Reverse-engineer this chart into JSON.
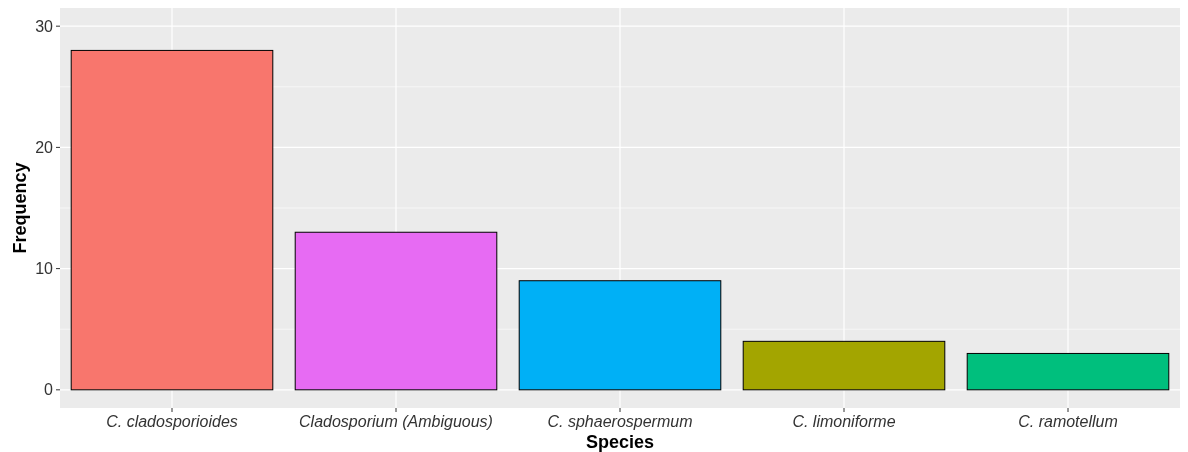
{
  "chart_data": {
    "type": "bar",
    "xlabel": "Species",
    "ylabel": "Frequency",
    "categories": [
      "C. cladosporioides",
      "Cladosporium (Ambiguous)",
      "C. sphaerospermum",
      "C. limoniforme",
      "C. ramotellum"
    ],
    "values": [
      28,
      13,
      9,
      4,
      3
    ],
    "colors": [
      "#f8766d",
      "#e76bf3",
      "#00b0f6",
      "#a3a500",
      "#00bf7d"
    ],
    "ylim": [
      -1.5,
      31.5
    ],
    "yticks": [
      0,
      10,
      20,
      30
    ],
    "grid": true
  }
}
